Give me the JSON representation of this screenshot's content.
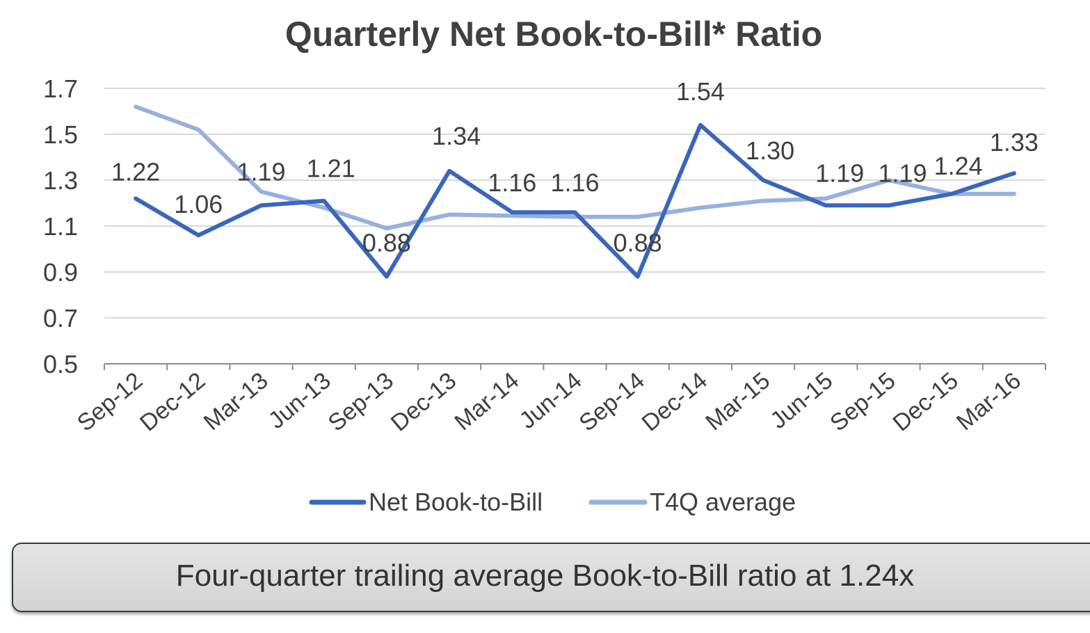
{
  "chart_data": {
    "type": "line",
    "title": "Quarterly Net Book-to-Bill* Ratio",
    "categories": [
      "Sep-12",
      "Dec-12",
      "Mar-13",
      "Jun-13",
      "Sep-13",
      "Dec-13",
      "Mar-14",
      "Jun-14",
      "Sep-14",
      "Dec-14",
      "Mar-15",
      "Jun-15",
      "Sep-15",
      "Dec-15",
      "Mar-16"
    ],
    "series": [
      {
        "name": "Net Book-to-Bill",
        "values": [
          1.22,
          1.06,
          1.19,
          1.21,
          0.88,
          1.34,
          1.16,
          1.16,
          0.88,
          1.54,
          1.3,
          1.19,
          1.19,
          1.24,
          1.33
        ],
        "data_labels": [
          "1.22",
          "1.06",
          "1.19",
          "1.21",
          "0.88",
          "1.34",
          "1.16",
          "1.16",
          "0.88",
          "1.54",
          "1.30",
          "1.19",
          "1.19",
          "1.24",
          "1.33"
        ],
        "color": "#3a66bc"
      },
      {
        "name": "T4Q average",
        "values": [
          1.62,
          1.52,
          1.25,
          1.18,
          1.09,
          1.15,
          1.145,
          1.14,
          1.14,
          1.18,
          1.21,
          1.22,
          1.3,
          1.24,
          1.24
        ],
        "color": "#97b1df"
      }
    ],
    "yticks": [
      "0.5",
      "0.7",
      "0.9",
      "1.1",
      "1.3",
      "1.5",
      "1.7"
    ],
    "ylim": [
      0.5,
      1.7
    ],
    "grid": true,
    "legend": "bottom"
  },
  "callout": {
    "text": "Four-quarter trailing average Book-to-Bill ratio at 1.24x"
  }
}
